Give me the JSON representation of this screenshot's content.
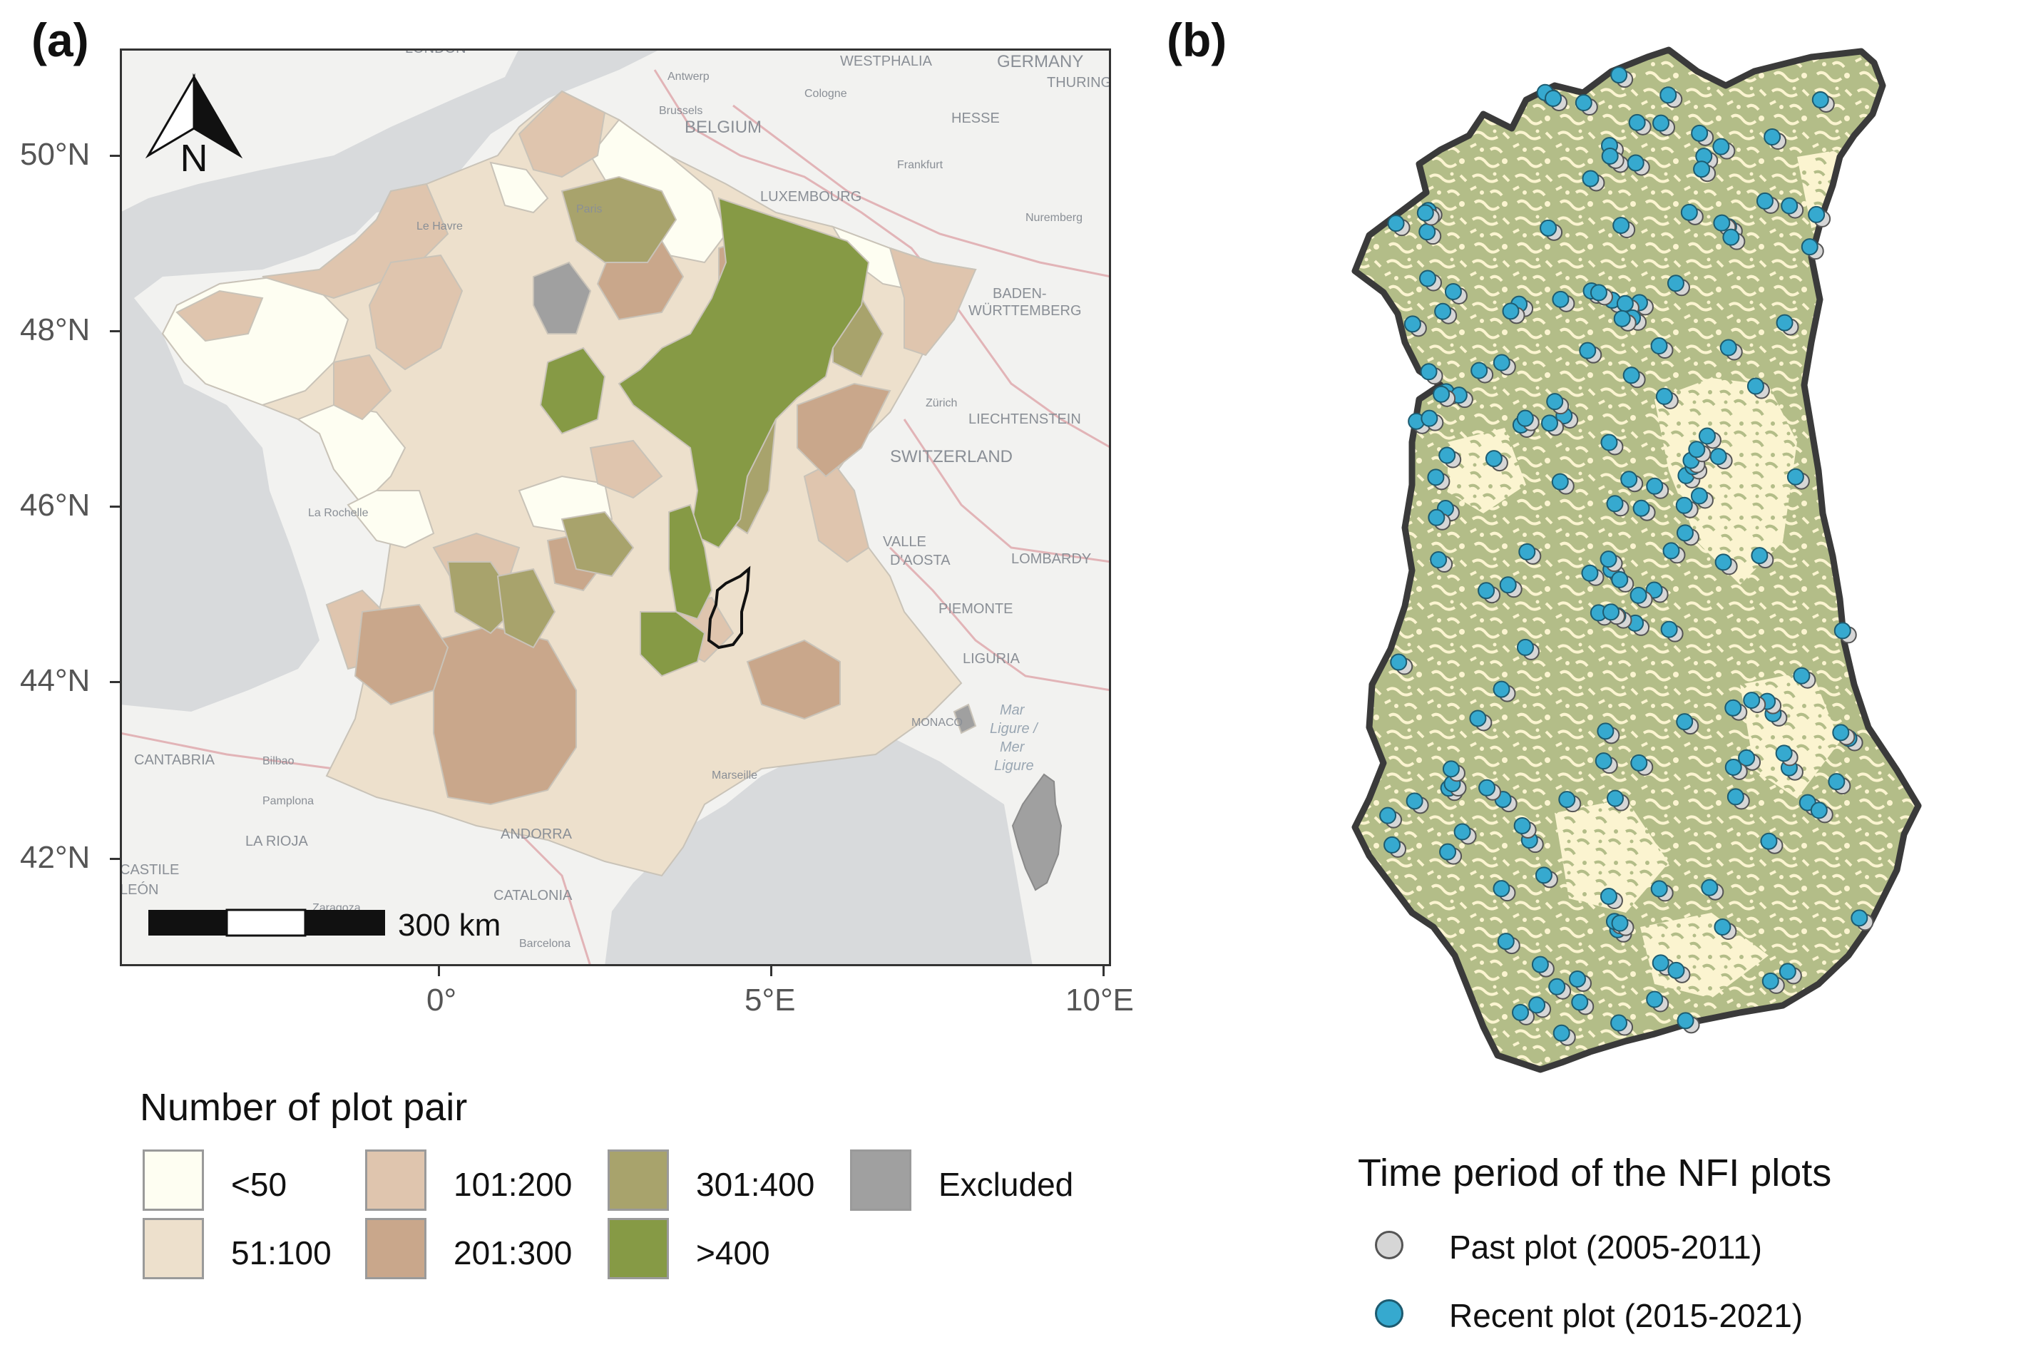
{
  "panel_a": {
    "label": "(a)",
    "north_arrow_label": "N",
    "scale_bar_label": "300 km",
    "lat_ticks": [
      "50°N",
      "48°N",
      "46°N",
      "44°N",
      "42°N"
    ],
    "lon_ticks": [
      "0°",
      "5°E",
      "10°E"
    ],
    "basemap_labels": [
      "LONDON",
      "WESTPHALIA",
      "GERMANY",
      "THURING",
      "Antwerp",
      "Cologne",
      "Brussels",
      "BELGIUM",
      "HESSE",
      "Frankfurt",
      "LUXEMBOURG",
      "Nuremberg",
      "Le Havre",
      "BADEN-",
      "WÜRTTEMBERG",
      "Zürich",
      "LIECHTENSTEIN",
      "SWITZERLAND",
      "La Rochelle",
      "VALLE",
      "D'AOSTA",
      "LOMBARDY",
      "PIEMONTE",
      "LIGURIA",
      "Mar",
      "Ligure /",
      "Mer",
      "Ligure",
      "MONACO",
      "CANTABRIA",
      "Bilbao",
      "Marseille",
      "Pamplona",
      "LA RIOJA",
      "ANDORRA",
      "CASTILE",
      "LEÓN",
      "Zaragoza",
      "CATALONIA",
      "Barcelona",
      "Paris"
    ]
  },
  "legend_a": {
    "title": "Number of plot pair",
    "items": [
      {
        "label": "<50",
        "color": "#fefef2"
      },
      {
        "label": "51:100",
        "color": "#ede0cc"
      },
      {
        "label": "101:200",
        "color": "#dfc5ae"
      },
      {
        "label": "201:300",
        "color": "#c9a78b"
      },
      {
        "label": "301:400",
        "color": "#a8a36c"
      },
      {
        "label": ">400",
        "color": "#869a45"
      },
      {
        "label": "Excluded",
        "color": "#a0a0a0"
      }
    ]
  },
  "panel_b": {
    "label": "(b)",
    "forest_color": "#b3bd88",
    "background_color": "#fbf4d0",
    "outline_color": "#3a3a3a"
  },
  "legend_b": {
    "title": "Time period of the NFI plots",
    "items": [
      {
        "label": "Past plot (2005-2011)",
        "color": "#d6d6d6"
      },
      {
        "label": "Recent plot (2015-2021)",
        "color": "#36a9cf"
      }
    ]
  },
  "colors": {
    "sea": "#d8dadc",
    "land": "#f2f2f0",
    "border": "#e5b5b8",
    "frame": "#333333"
  }
}
